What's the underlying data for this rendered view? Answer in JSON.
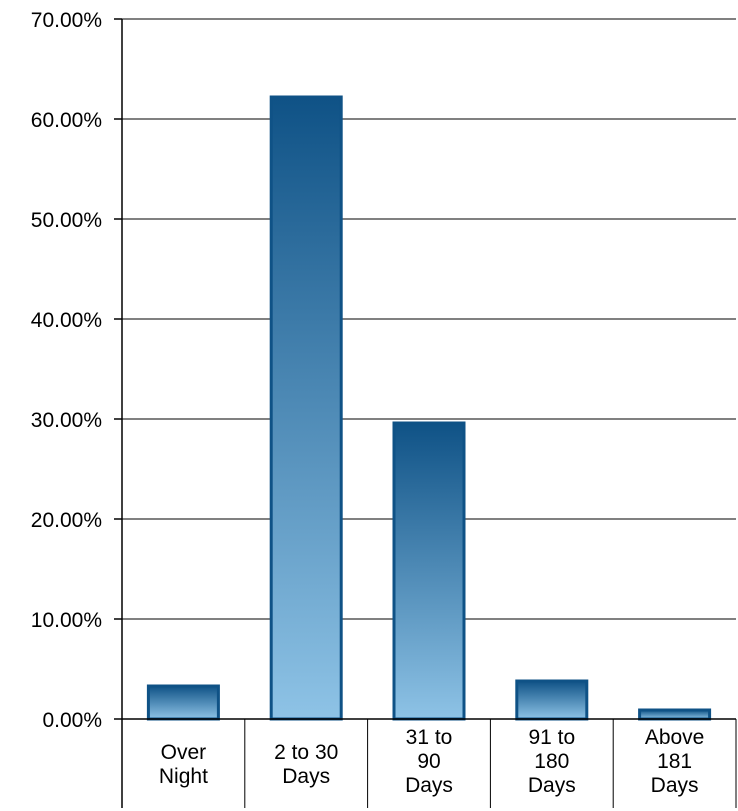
{
  "chart_data": {
    "type": "bar",
    "categories": [
      [
        "Over",
        "Night"
      ],
      [
        "2 to 30",
        "Days"
      ],
      [
        "31 to",
        "90",
        "Days"
      ],
      [
        "91 to",
        "180",
        "Days"
      ],
      [
        "Above",
        "181",
        "Days"
      ]
    ],
    "values": [
      3.3,
      62.2,
      29.6,
      3.8,
      0.9
    ],
    "yticks": [
      "0.00%",
      "10.00%",
      "20.00%",
      "30.00%",
      "40.00%",
      "50.00%",
      "60.00%",
      "70.00%"
    ],
    "ylim": [
      0,
      70
    ],
    "grid": true,
    "legend": "none",
    "colors": {
      "bar_top": "#0f5286",
      "bar_bottom": "#8ec3e6",
      "bar_border": "#0f5286",
      "grid": "#000000"
    }
  }
}
